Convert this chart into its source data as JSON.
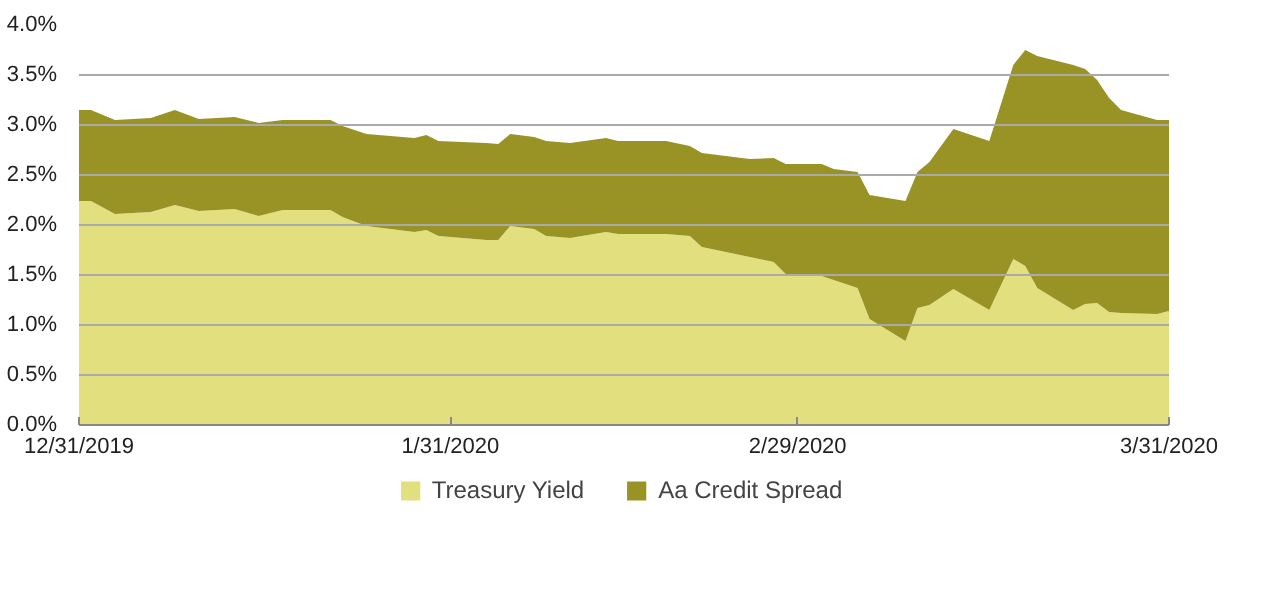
{
  "chart_data": {
    "type": "area",
    "stacked": true,
    "x": [
      "2019-12-31",
      "2020-01-01",
      "2020-01-03",
      "2020-01-06",
      "2020-01-08",
      "2020-01-10",
      "2020-01-13",
      "2020-01-15",
      "2020-01-17",
      "2020-01-21",
      "2020-01-22",
      "2020-01-24",
      "2020-01-28",
      "2020-01-29",
      "2020-01-30",
      "2020-02-03",
      "2020-02-04",
      "2020-02-05",
      "2020-02-07",
      "2020-02-08",
      "2020-02-10",
      "2020-02-13",
      "2020-02-14",
      "2020-02-18",
      "2020-02-20",
      "2020-02-21",
      "2020-02-25",
      "2020-02-27",
      "2020-02-28",
      "2020-03-02",
      "2020-03-03",
      "2020-03-05",
      "2020-03-06",
      "2020-03-09",
      "2020-03-10",
      "2020-03-11",
      "2020-03-13",
      "2020-03-16",
      "2020-03-18",
      "2020-03-19",
      "2020-03-20",
      "2020-03-23",
      "2020-03-24",
      "2020-03-25",
      "2020-03-26",
      "2020-03-27",
      "2020-03-30",
      "2020-03-31"
    ],
    "series": [
      {
        "name": "Treasury Yield",
        "color": "#e2df7f",
        "values": [
          2.24,
          2.24,
          2.11,
          2.13,
          2.2,
          2.14,
          2.16,
          2.09,
          2.15,
          2.15,
          2.08,
          1.99,
          1.93,
          1.95,
          1.89,
          1.85,
          1.85,
          1.99,
          1.96,
          1.89,
          1.87,
          1.93,
          1.91,
          1.91,
          1.89,
          1.78,
          1.68,
          1.63,
          1.51,
          1.49,
          1.45,
          1.37,
          1.06,
          0.84,
          1.17,
          1.2,
          1.36,
          1.15,
          1.66,
          1.59,
          1.37,
          1.15,
          1.21,
          1.22,
          1.13,
          1.12,
          1.11,
          1.14
        ]
      },
      {
        "name": "Aa Credit Spread",
        "color": "#999325",
        "values": [
          0.91,
          0.91,
          0.94,
          0.94,
          0.95,
          0.92,
          0.92,
          0.93,
          0.9,
          0.9,
          0.91,
          0.92,
          0.94,
          0.95,
          0.95,
          0.97,
          0.96,
          0.92,
          0.92,
          0.95,
          0.95,
          0.94,
          0.93,
          0.93,
          0.9,
          0.94,
          0.98,
          1.04,
          1.1,
          1.12,
          1.11,
          1.16,
          1.24,
          1.4,
          1.36,
          1.43,
          1.6,
          1.69,
          1.94,
          2.16,
          2.32,
          2.45,
          2.35,
          2.23,
          2.14,
          2.03,
          1.94,
          1.91
        ]
      }
    ],
    "xlim": [
      "2019-12-31",
      "2020-03-31"
    ],
    "xticks": [
      {
        "value": "2019-12-31",
        "label": "12/31/2019"
      },
      {
        "value": "2020-01-31",
        "label": "1/31/2020"
      },
      {
        "value": "2020-02-29",
        "label": "2/29/2020"
      },
      {
        "value": "2020-03-31",
        "label": "3/31/2020"
      }
    ],
    "ylim": [
      0,
      4
    ],
    "yticks": [
      {
        "value": 0,
        "label": "0.0%"
      },
      {
        "value": 0.5,
        "label": "0.5%"
      },
      {
        "value": 1,
        "label": "1.0%"
      },
      {
        "value": 1.5,
        "label": "1.5%"
      },
      {
        "value": 2,
        "label": "2.0%"
      },
      {
        "value": 2.5,
        "label": "2.5%"
      },
      {
        "value": 3,
        "label": "3.0%"
      },
      {
        "value": 3.5,
        "label": "3.5%"
      },
      {
        "value": 4,
        "label": "4.0%"
      }
    ],
    "grid": "y",
    "legend": "bottom"
  }
}
